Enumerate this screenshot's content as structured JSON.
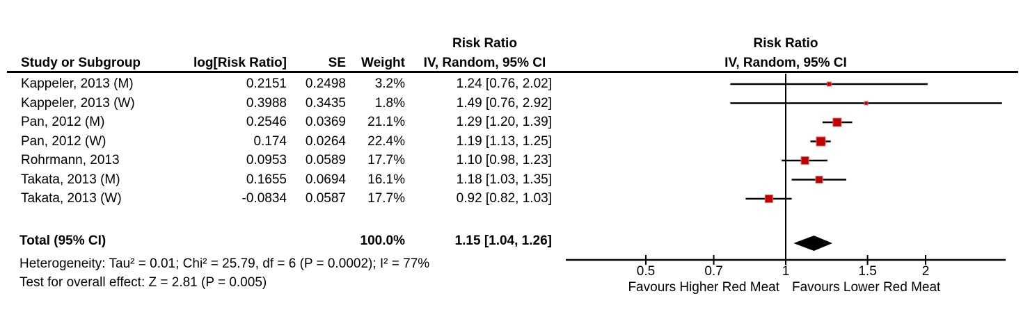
{
  "table": {
    "headers": {
      "study": "Study or Subgroup",
      "log_rr": "log[Risk Ratio]",
      "se": "SE",
      "weight": "Weight",
      "effect_text_line1": "Risk Ratio",
      "effect_text_line2": "IV, Random, 95% CI",
      "effect_plot_line1": "Risk Ratio",
      "effect_plot_line2": "IV, Random, 95% CI"
    }
  },
  "chart_data": {
    "type": "forest",
    "x_scale": "log",
    "axis_ticks": [
      "0.5",
      "0.7",
      "1",
      "1.5",
      "2"
    ],
    "xlim": [
      0.34,
      2.97
    ],
    "favours_left": "Favours Higher Red Meat",
    "favours_right": "Favours Lower Red Meat",
    "studies": [
      {
        "label": "Kappeler, 2013 (M)",
        "log_rr": "0.2151",
        "se": "0.2498",
        "weight": "3.2%",
        "weight_pct": 3.2,
        "rr": 1.24,
        "ci_low": 0.76,
        "ci_high": 2.02,
        "ci_text": "1.24 [0.76, 2.02]"
      },
      {
        "label": "Kappeler, 2013 (W)",
        "log_rr": "0.3988",
        "se": "0.3435",
        "weight": "1.8%",
        "weight_pct": 1.8,
        "rr": 1.49,
        "ci_low": 0.76,
        "ci_high": 2.92,
        "ci_text": "1.49 [0.76, 2.92]"
      },
      {
        "label": "Pan, 2012 (M)",
        "log_rr": "0.2546",
        "se": "0.0369",
        "weight": "21.1%",
        "weight_pct": 21.1,
        "rr": 1.29,
        "ci_low": 1.2,
        "ci_high": 1.39,
        "ci_text": "1.29 [1.20, 1.39]"
      },
      {
        "label": "Pan, 2012 (W)",
        "log_rr": "0.174",
        "se": "0.0264",
        "weight": "22.4%",
        "weight_pct": 22.4,
        "rr": 1.19,
        "ci_low": 1.13,
        "ci_high": 1.25,
        "ci_text": "1.19 [1.13, 1.25]"
      },
      {
        "label": "Rohrmann, 2013",
        "log_rr": "0.0953",
        "se": "0.0589",
        "weight": "17.7%",
        "weight_pct": 17.7,
        "rr": 1.1,
        "ci_low": 0.98,
        "ci_high": 1.23,
        "ci_text": "1.10 [0.98, 1.23]"
      },
      {
        "label": "Takata, 2013 (M)",
        "log_rr": "0.1655",
        "se": "0.0694",
        "weight": "16.1%",
        "weight_pct": 16.1,
        "rr": 1.18,
        "ci_low": 1.03,
        "ci_high": 1.35,
        "ci_text": "1.18 [1.03, 1.35]"
      },
      {
        "label": "Takata, 2013 (W)",
        "log_rr": "-0.0834",
        "se": "0.0587",
        "weight": "17.7%",
        "weight_pct": 17.7,
        "rr": 0.92,
        "ci_low": 0.82,
        "ci_high": 1.03,
        "ci_text": "0.92 [0.82, 1.03]"
      }
    ],
    "total": {
      "label": "Total (95% CI)",
      "weight": "100.0%",
      "rr": 1.15,
      "ci_low": 1.04,
      "ci_high": 1.26,
      "ci_text": "1.15 [1.04, 1.26]"
    },
    "heterogeneity": "Heterogeneity: Tau² = 0.01; Chi² = 25.79, df = 6 (P = 0.0002); I² = 77%",
    "overall_effect": "Test for overall effect: Z = 2.81 (P = 0.005)",
    "marker_color": "#c00000",
    "marker_border_color": "#e06666",
    "line_color": "#000000",
    "diamond_color": "#000000"
  }
}
